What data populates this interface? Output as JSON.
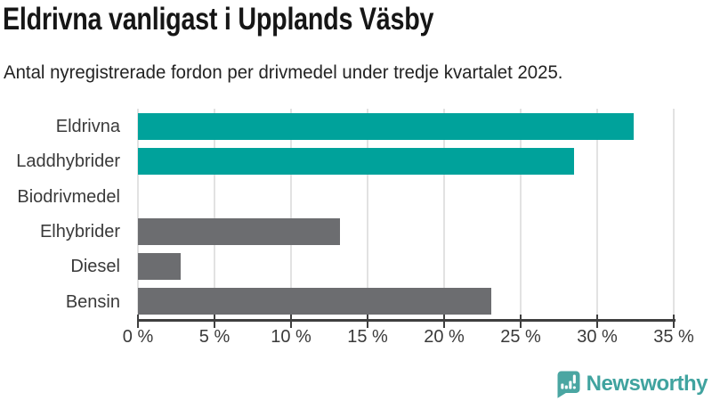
{
  "header": {
    "title": "Eldrivna vanligast i Upplands Väsby",
    "subtitle": "Antal nyregistrerade fordon per drivmedel under tredje kvartalet 2025."
  },
  "chart_data": {
    "type": "bar",
    "orientation": "horizontal",
    "title": "Eldrivna vanligast i Upplands Väsby",
    "subtitle": "Antal nyregistrerade fordon per drivmedel under tredje kvartalet 2025.",
    "categories": [
      "Eldrivna",
      "Laddhybrider",
      "Biodrivmedel",
      "Elhybrider",
      "Diesel",
      "Bensin"
    ],
    "values": [
      32.4,
      28.5,
      0,
      13.2,
      2.8,
      23.1
    ],
    "unit": "%",
    "xlim": [
      0,
      35
    ],
    "x_tick_values": [
      0,
      5,
      10,
      15,
      20,
      25,
      30,
      35
    ],
    "x_tick_labels": [
      "0 %",
      "5 %",
      "10 %",
      "15 %",
      "20 %",
      "25 %",
      "30 %",
      "35 %"
    ],
    "grid": true,
    "legend": false,
    "bar_colors": [
      "#00a29b",
      "#00a29b",
      "#6c6d70",
      "#6c6d70",
      "#6c6d70",
      "#6c6d70"
    ],
    "highlight_color": "#00a29b",
    "default_bar_color": "#6c6d70",
    "gridline_color": "#e2e2e2",
    "axis_color": "#3f3f3f",
    "label_color": "#3a3a3a"
  },
  "footer": {
    "brand": "Newsworthy",
    "logo_icon": "bar-chart-speech-bubble-icon",
    "brand_color": "#40a39f",
    "icon_color": "#4aa6a2"
  }
}
